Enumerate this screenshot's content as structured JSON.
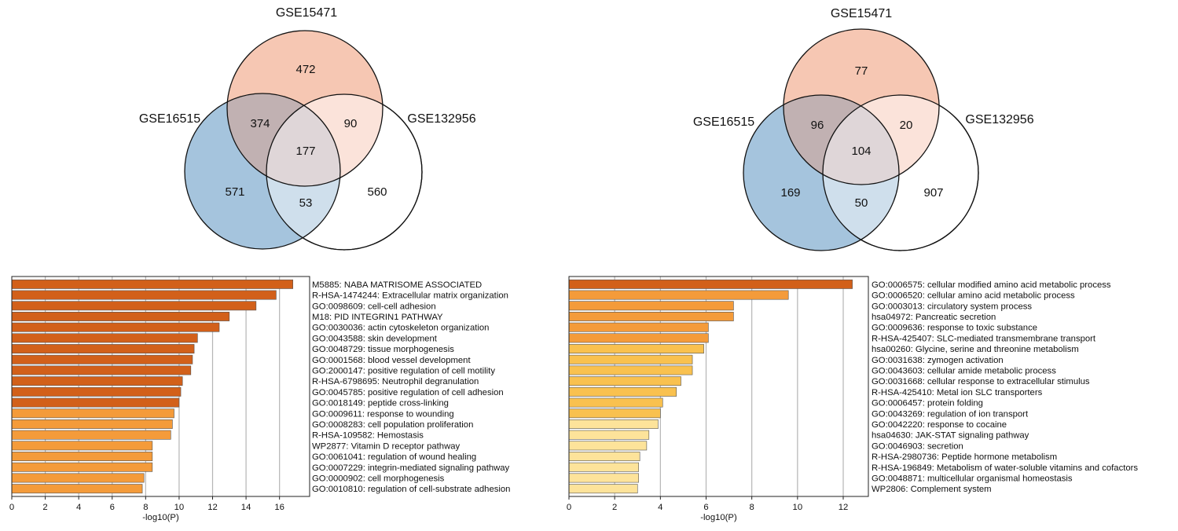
{
  "chart_data": [
    {
      "type": "venn",
      "sets": [
        "GSE15471",
        "GSE16515",
        "GSE132956"
      ],
      "regions": {
        "GSE15471_only": 472,
        "GSE15471_GSE16515": 374,
        "GSE15471_GSE132956": 90,
        "all_three": 177,
        "GSE16515_only": 571,
        "GSE16515_GSE132956": 53,
        "GSE132956_only": 560
      },
      "colors": {
        "GSE15471": "#f6c7b3",
        "GSE16515": "#a5c4dd",
        "GSE132956": "#ffffff"
      }
    },
    {
      "type": "venn",
      "sets": [
        "GSE15471",
        "GSE16515",
        "GSE132956"
      ],
      "regions": {
        "GSE15471_only": 77,
        "GSE15471_GSE16515": 96,
        "GSE15471_GSE132956": 20,
        "all_three": 104,
        "GSE16515_only": 169,
        "GSE16515_GSE132956": 50,
        "GSE132956_only": 907
      },
      "colors": {
        "GSE15471": "#f6c7b3",
        "GSE16515": "#a5c4dd",
        "GSE132956": "#ffffff"
      }
    },
    {
      "type": "bar",
      "orientation": "horizontal",
      "xlabel": "-log10(P)",
      "xlim": [
        0,
        17.8
      ],
      "xticks": [
        0,
        2,
        4,
        6,
        8,
        10,
        12,
        14,
        16
      ],
      "grid": true,
      "categories": [
        "M5885: NABA MATRISOME ASSOCIATED",
        "R-HSA-1474244: Extracellular matrix organization",
        "GO:0098609: cell-cell adhesion",
        "M18: PID INTEGRIN1 PATHWAY",
        "GO:0030036: actin cytoskeleton organization",
        "GO:0043588: skin development",
        "GO:0048729: tissue morphogenesis",
        "GO:0001568: blood vessel development",
        "GO:2000147: positive regulation of cell motility",
        "R-HSA-6798695: Neutrophil degranulation",
        "GO:0045785: positive regulation of cell adhesion",
        "GO:0018149: peptide cross-linking",
        "GO:0009611: response to wounding",
        "GO:0008283: cell population proliferation",
        "R-HSA-109582: Hemostasis",
        "WP2877: Vitamin D receptor pathway",
        "GO:0061041: regulation of wound healing",
        "GO:0007229: integrin-mediated signaling pathway",
        "GO:0000902: cell morphogenesis",
        "GO:0010810: regulation of cell-substrate adhesion"
      ],
      "values": [
        16.8,
        15.8,
        14.6,
        13.0,
        12.4,
        11.1,
        10.9,
        10.8,
        10.7,
        10.2,
        10.1,
        10.0,
        9.7,
        9.6,
        9.5,
        8.4,
        8.4,
        8.4,
        7.9,
        7.8
      ],
      "colors": [
        "#d2601a",
        "#d2601a",
        "#d2601a",
        "#d2601a",
        "#d2601a",
        "#d2601a",
        "#d2601a",
        "#d2601a",
        "#d2601a",
        "#d2601a",
        "#d2601a",
        "#d2601a",
        "#f49b3a",
        "#f49b3a",
        "#f49b3a",
        "#f49b3a",
        "#f49b3a",
        "#f49b3a",
        "#f49b3a",
        "#f49b3a"
      ]
    },
    {
      "type": "bar",
      "orientation": "horizontal",
      "xlabel": "-log10(P)",
      "xlim": [
        0,
        13.1
      ],
      "xticks": [
        0,
        2,
        4,
        6,
        8,
        10,
        12
      ],
      "grid": true,
      "categories": [
        "GO:0006575: cellular modified amino acid metabolic process",
        "GO:0006520: cellular amino acid metabolic process",
        "GO:0003013: circulatory system process",
        "hsa04972: Pancreatic secretion",
        "GO:0009636: response to toxic substance",
        "R-HSA-425407: SLC-mediated transmembrane transport",
        "hsa00260: Glycine, serine and threonine metabolism",
        "GO:0031638: zymogen activation",
        "GO:0043603: cellular amide metabolic process",
        "GO:0031668: cellular response to extracellular stimulus",
        "R-HSA-425410: Metal ion SLC transporters",
        "GO:0006457: protein folding",
        "GO:0043269: regulation of ion transport",
        "GO:0042220: response to cocaine",
        "hsa04630: JAK-STAT signaling pathway",
        "GO:0046903: secretion",
        "R-HSA-2980736: Peptide hormone metabolism",
        "R-HSA-196849: Metabolism of water-soluble vitamins and cofactors",
        "GO:0048871: multicellular organismal homeostasis",
        "WP2806: Complement system"
      ],
      "values": [
        12.4,
        9.6,
        7.2,
        7.2,
        6.1,
        6.1,
        5.9,
        5.4,
        5.4,
        4.9,
        4.7,
        4.1,
        4.0,
        3.9,
        3.5,
        3.4,
        3.1,
        3.05,
        3.05,
        3.0
      ],
      "colors": [
        "#d2601a",
        "#f49b3a",
        "#f49b3a",
        "#f49b3a",
        "#f49b3a",
        "#f49b3a",
        "#f9c14f",
        "#f9c14f",
        "#f9c14f",
        "#f9c14f",
        "#f9c14f",
        "#f9c14f",
        "#f9c14f",
        "#fde39a",
        "#fde39a",
        "#fde39a",
        "#fde39a",
        "#fde39a",
        "#fde39a",
        "#fde39a"
      ]
    }
  ]
}
